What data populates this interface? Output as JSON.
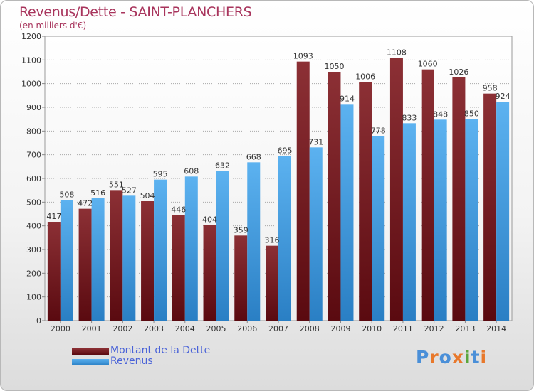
{
  "chart_data": {
    "type": "bar",
    "title": "Revenus/Dette - SAINT-PLANCHERS",
    "subtitle": "(en milliers d'€)",
    "categories": [
      "2000",
      "2001",
      "2002",
      "2003",
      "2004",
      "2005",
      "2006",
      "2007",
      "2008",
      "2009",
      "2010",
      "2011",
      "2012",
      "2013",
      "2014"
    ],
    "series": [
      {
        "name": "Montant de la Dette",
        "color": "#7a1f25",
        "values": [
          417,
          472,
          551,
          504,
          446,
          404,
          359,
          316,
          1093,
          1050,
          1006,
          1108,
          1060,
          1026,
          958
        ]
      },
      {
        "name": "Revenus",
        "color": "#3f9ae0",
        "values": [
          508,
          516,
          527,
          595,
          608,
          632,
          668,
          695,
          731,
          914,
          778,
          833,
          848,
          850,
          924
        ]
      }
    ],
    "ylim": [
      0,
      1200
    ],
    "yticks": [
      0,
      100,
      200,
      300,
      400,
      500,
      600,
      700,
      800,
      900,
      1000,
      1100,
      1200
    ],
    "grid": true,
    "legend": "bottom-left"
  },
  "logo": {
    "text": "Proxiti",
    "colors": [
      "#4a8fd8",
      "#e8782b",
      "#4a8fd8",
      "#e8782b",
      "#5aa63c",
      "#4a8fd8",
      "#e8782b"
    ]
  }
}
